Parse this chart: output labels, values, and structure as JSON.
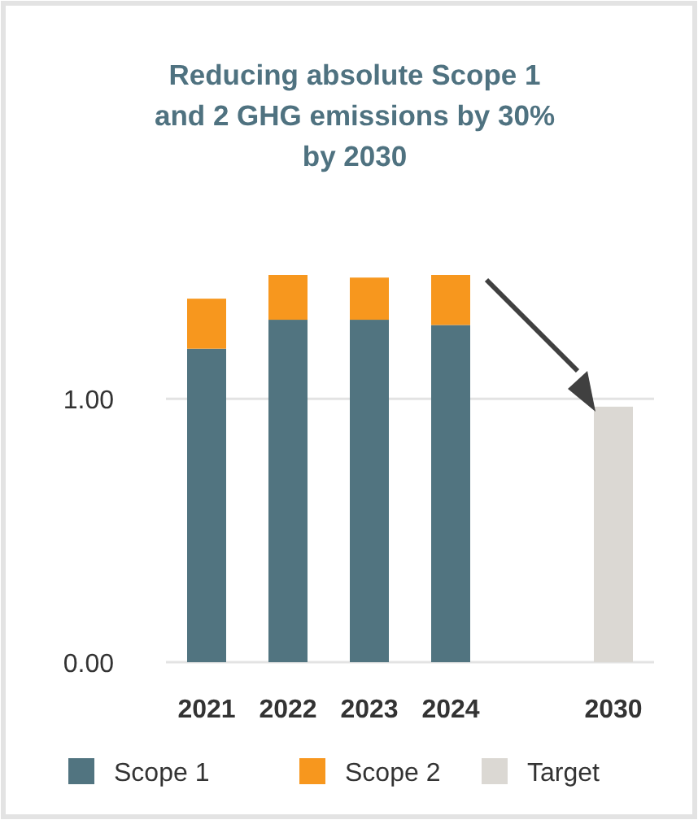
{
  "chart_data": {
    "type": "bar",
    "title": "Reducing absolute Scope 1\nand 2 GHG emissions by 30%\nby 2030",
    "categories": [
      "2021",
      "2022",
      "2023",
      "2024",
      null,
      "2030"
    ],
    "stacked": true,
    "series": [
      {
        "name": "Scope 1",
        "color": "#517480",
        "values": [
          1.19,
          1.3,
          1.3,
          1.28,
          null,
          null
        ]
      },
      {
        "name": "Scope 2",
        "color": "#f7971e",
        "values": [
          0.19,
          0.17,
          0.16,
          0.19,
          null,
          null
        ]
      },
      {
        "name": "Target",
        "color": "#dbd8d3",
        "values": [
          null,
          null,
          null,
          null,
          null,
          0.97
        ]
      }
    ],
    "ylim": [
      0,
      1.47
    ],
    "yticks": [
      {
        "value": 0,
        "label": "0.00"
      },
      {
        "value": 1,
        "label": "1.00"
      }
    ],
    "grid": "y",
    "legend": "bottom"
  }
}
